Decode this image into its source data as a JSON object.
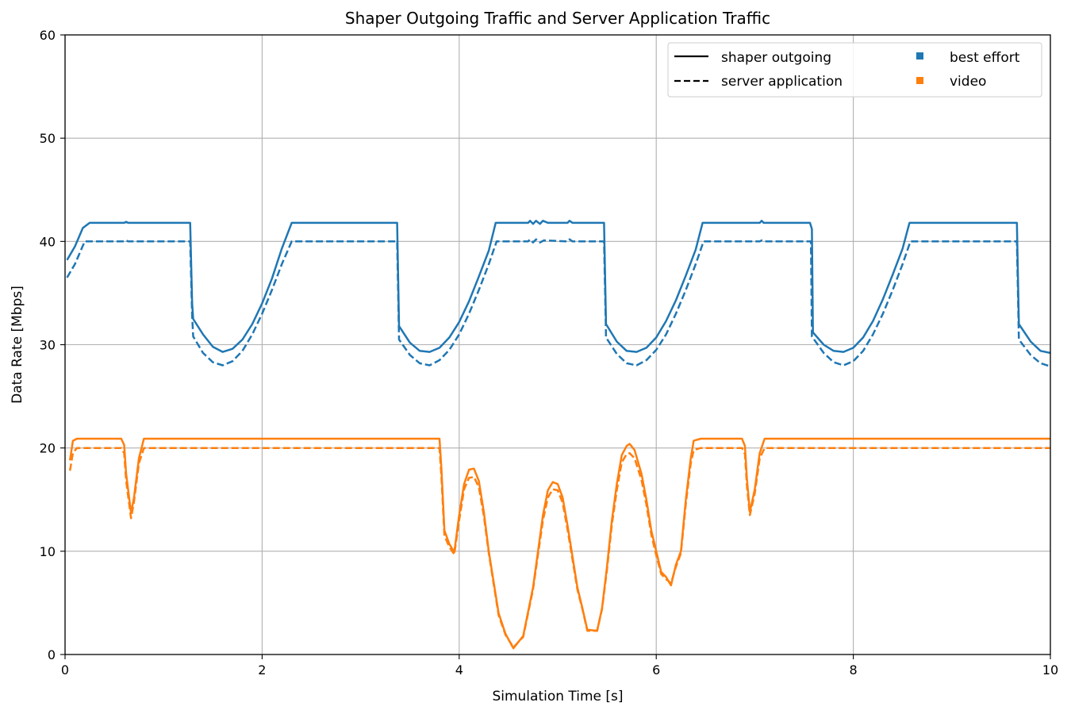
{
  "chart_data": {
    "type": "line",
    "title": "Shaper Outgoing Traffic and Server Application Traffic",
    "xlabel": "Simulation Time [s]",
    "ylabel": "Data Rate [Mbps]",
    "xlim": [
      0,
      10
    ],
    "ylim": [
      0,
      60
    ],
    "xticks": [
      0,
      2,
      4,
      6,
      8,
      10
    ],
    "yticks": [
      0,
      10,
      20,
      30,
      40,
      50,
      60
    ],
    "grid": true,
    "legend_position": "top-right",
    "legend": {
      "linestyles": [
        {
          "label": "shaper outgoing",
          "style": "solid"
        },
        {
          "label": "server application",
          "style": "dashed"
        }
      ],
      "categories": [
        {
          "label": "best effort",
          "color": "#1f77b4"
        },
        {
          "label": "video",
          "color": "#ff7f0e"
        }
      ]
    },
    "series": [
      {
        "category": "best effort",
        "style": "solid",
        "color": "#1f77b4",
        "points": [
          [
            0.02,
            38.2
          ],
          [
            0.1,
            39.5
          ],
          [
            0.18,
            41.3
          ],
          [
            0.25,
            41.8
          ],
          [
            0.6,
            41.8
          ],
          [
            0.62,
            41.9
          ],
          [
            0.64,
            41.8
          ],
          [
            1.27,
            41.8
          ],
          [
            1.29,
            34.0
          ],
          [
            1.3,
            32.5
          ],
          [
            1.4,
            31.0
          ],
          [
            1.5,
            29.8
          ],
          [
            1.6,
            29.3
          ],
          [
            1.7,
            29.6
          ],
          [
            1.8,
            30.5
          ],
          [
            1.9,
            32.0
          ],
          [
            2.0,
            34.0
          ],
          [
            2.1,
            36.4
          ],
          [
            2.2,
            39.3
          ],
          [
            2.3,
            41.8
          ],
          [
            3.37,
            41.8
          ],
          [
            3.39,
            31.8
          ],
          [
            3.5,
            30.2
          ],
          [
            3.6,
            29.4
          ],
          [
            3.7,
            29.3
          ],
          [
            3.8,
            29.7
          ],
          [
            3.9,
            30.7
          ],
          [
            4.0,
            32.2
          ],
          [
            4.1,
            34.2
          ],
          [
            4.2,
            36.6
          ],
          [
            4.3,
            39.1
          ],
          [
            4.37,
            41.8
          ],
          [
            4.7,
            41.8
          ],
          [
            4.72,
            42.0
          ],
          [
            4.75,
            41.7
          ],
          [
            4.78,
            42.0
          ],
          [
            4.82,
            41.7
          ],
          [
            4.85,
            42.0
          ],
          [
            4.9,
            41.8
          ],
          [
            5.1,
            41.8
          ],
          [
            5.12,
            42.0
          ],
          [
            5.15,
            41.8
          ],
          [
            5.47,
            41.8
          ],
          [
            5.49,
            32.0
          ],
          [
            5.6,
            30.3
          ],
          [
            5.7,
            29.4
          ],
          [
            5.8,
            29.3
          ],
          [
            5.9,
            29.7
          ],
          [
            6.0,
            30.7
          ],
          [
            6.1,
            32.3
          ],
          [
            6.2,
            34.3
          ],
          [
            6.3,
            36.7
          ],
          [
            6.4,
            39.2
          ],
          [
            6.47,
            41.8
          ],
          [
            7.05,
            41.8
          ],
          [
            7.07,
            42.0
          ],
          [
            7.09,
            41.8
          ],
          [
            7.56,
            41.8
          ],
          [
            7.58,
            41.2
          ],
          [
            7.59,
            31.2
          ],
          [
            7.7,
            30.0
          ],
          [
            7.8,
            29.4
          ],
          [
            7.9,
            29.3
          ],
          [
            8.0,
            29.7
          ],
          [
            8.1,
            30.7
          ],
          [
            8.2,
            32.3
          ],
          [
            8.3,
            34.4
          ],
          [
            8.4,
            36.8
          ],
          [
            8.5,
            39.3
          ],
          [
            8.57,
            41.8
          ],
          [
            9.66,
            41.8
          ],
          [
            9.68,
            32.0
          ],
          [
            9.8,
            30.3
          ],
          [
            9.9,
            29.4
          ],
          [
            10.0,
            29.2
          ]
        ]
      },
      {
        "category": "best effort",
        "style": "dashed",
        "color": "#1f77b4",
        "points": [
          [
            0.02,
            36.5
          ],
          [
            0.1,
            37.8
          ],
          [
            0.2,
            40.0
          ],
          [
            0.6,
            40.0
          ],
          [
            0.62,
            40.1
          ],
          [
            0.64,
            40.0
          ],
          [
            1.27,
            40.0
          ],
          [
            1.29,
            32.8
          ],
          [
            1.3,
            30.8
          ],
          [
            1.4,
            29.2
          ],
          [
            1.5,
            28.3
          ],
          [
            1.6,
            28.0
          ],
          [
            1.7,
            28.4
          ],
          [
            1.8,
            29.4
          ],
          [
            1.9,
            31.0
          ],
          [
            2.0,
            33.0
          ],
          [
            2.1,
            35.3
          ],
          [
            2.2,
            37.8
          ],
          [
            2.3,
            40.0
          ],
          [
            3.37,
            40.0
          ],
          [
            3.39,
            30.5
          ],
          [
            3.5,
            29.0
          ],
          [
            3.6,
            28.2
          ],
          [
            3.7,
            28.0
          ],
          [
            3.8,
            28.5
          ],
          [
            3.9,
            29.5
          ],
          [
            4.0,
            31.0
          ],
          [
            4.1,
            33.0
          ],
          [
            4.2,
            35.3
          ],
          [
            4.3,
            37.8
          ],
          [
            4.38,
            40.0
          ],
          [
            4.7,
            40.0
          ],
          [
            4.72,
            40.2
          ],
          [
            4.75,
            39.9
          ],
          [
            4.78,
            40.2
          ],
          [
            4.82,
            39.9
          ],
          [
            4.86,
            40.1
          ],
          [
            5.1,
            40.0
          ],
          [
            5.12,
            40.2
          ],
          [
            5.15,
            40.0
          ],
          [
            5.47,
            40.0
          ],
          [
            5.49,
            30.7
          ],
          [
            5.6,
            29.1
          ],
          [
            5.7,
            28.2
          ],
          [
            5.8,
            28.0
          ],
          [
            5.9,
            28.5
          ],
          [
            6.0,
            29.5
          ],
          [
            6.1,
            31.0
          ],
          [
            6.2,
            33.0
          ],
          [
            6.3,
            35.3
          ],
          [
            6.4,
            37.8
          ],
          [
            6.48,
            40.0
          ],
          [
            7.05,
            40.0
          ],
          [
            7.07,
            40.1
          ],
          [
            7.09,
            40.0
          ],
          [
            7.57,
            40.0
          ],
          [
            7.58,
            30.8
          ],
          [
            7.7,
            29.2
          ],
          [
            7.8,
            28.3
          ],
          [
            7.9,
            28.0
          ],
          [
            8.0,
            28.4
          ],
          [
            8.1,
            29.4
          ],
          [
            8.2,
            31.0
          ],
          [
            8.3,
            33.0
          ],
          [
            8.4,
            35.3
          ],
          [
            8.5,
            37.8
          ],
          [
            8.58,
            40.0
          ],
          [
            9.66,
            40.0
          ],
          [
            9.68,
            30.5
          ],
          [
            9.8,
            29.0
          ],
          [
            9.9,
            28.2
          ],
          [
            10.0,
            27.9
          ]
        ]
      },
      {
        "category": "video",
        "style": "solid",
        "color": "#ff7f0e",
        "points": [
          [
            0.05,
            18.8
          ],
          [
            0.08,
            20.7
          ],
          [
            0.12,
            20.9
          ],
          [
            0.57,
            20.9
          ],
          [
            0.6,
            20.3
          ],
          [
            0.62,
            17.5
          ],
          [
            0.67,
            13.7
          ],
          [
            0.7,
            15.2
          ],
          [
            0.75,
            19.0
          ],
          [
            0.8,
            20.9
          ],
          [
            3.8,
            20.9
          ],
          [
            3.82,
            18.0
          ],
          [
            3.85,
            12.0
          ],
          [
            3.9,
            10.7
          ],
          [
            3.95,
            9.9
          ],
          [
            4.0,
            13.5
          ],
          [
            4.05,
            16.5
          ],
          [
            4.1,
            17.9
          ],
          [
            4.15,
            18.0
          ],
          [
            4.2,
            16.8
          ],
          [
            4.25,
            13.8
          ],
          [
            4.3,
            10.0
          ],
          [
            4.35,
            7.0
          ],
          [
            4.4,
            4.0
          ],
          [
            4.47,
            2.0
          ],
          [
            4.55,
            0.6
          ],
          [
            4.65,
            1.8
          ],
          [
            4.75,
            6.5
          ],
          [
            4.8,
            10.0
          ],
          [
            4.85,
            13.5
          ],
          [
            4.9,
            15.9
          ],
          [
            4.95,
            16.7
          ],
          [
            5.0,
            16.5
          ],
          [
            5.05,
            15.2
          ],
          [
            5.1,
            12.5
          ],
          [
            5.15,
            9.5
          ],
          [
            5.2,
            6.5
          ],
          [
            5.25,
            4.5
          ],
          [
            5.3,
            2.4
          ],
          [
            5.4,
            2.3
          ],
          [
            5.45,
            4.5
          ],
          [
            5.5,
            8.5
          ],
          [
            5.55,
            13.0
          ],
          [
            5.6,
            16.5
          ],
          [
            5.65,
            19.3
          ],
          [
            5.7,
            20.2
          ],
          [
            5.73,
            20.4
          ],
          [
            5.78,
            19.8
          ],
          [
            5.85,
            17.5
          ],
          [
            5.9,
            15.0
          ],
          [
            5.95,
            12.0
          ],
          [
            6.0,
            10.0
          ],
          [
            6.05,
            8.0
          ],
          [
            6.1,
            7.5
          ],
          [
            6.15,
            6.7
          ],
          [
            6.2,
            8.7
          ],
          [
            6.25,
            10.0
          ],
          [
            6.3,
            15.0
          ],
          [
            6.35,
            19.0
          ],
          [
            6.38,
            20.7
          ],
          [
            6.45,
            20.9
          ],
          [
            6.87,
            20.9
          ],
          [
            6.9,
            20.2
          ],
          [
            6.92,
            17.0
          ],
          [
            6.95,
            13.8
          ],
          [
            7.0,
            16.0
          ],
          [
            7.05,
            19.5
          ],
          [
            7.1,
            20.9
          ],
          [
            10.0,
            20.9
          ]
        ]
      },
      {
        "category": "video",
        "style": "dashed",
        "color": "#ff7f0e",
        "points": [
          [
            0.05,
            17.8
          ],
          [
            0.08,
            19.5
          ],
          [
            0.12,
            20.0
          ],
          [
            0.57,
            20.0
          ],
          [
            0.6,
            19.5
          ],
          [
            0.62,
            16.8
          ],
          [
            0.67,
            13.2
          ],
          [
            0.7,
            14.8
          ],
          [
            0.75,
            18.5
          ],
          [
            0.8,
            20.0
          ],
          [
            3.8,
            20.0
          ],
          [
            3.82,
            17.2
          ],
          [
            3.85,
            11.5
          ],
          [
            3.9,
            10.4
          ],
          [
            3.95,
            9.7
          ],
          [
            4.0,
            13.0
          ],
          [
            4.05,
            16.0
          ],
          [
            4.1,
            17.1
          ],
          [
            4.15,
            17.2
          ],
          [
            4.2,
            16.2
          ],
          [
            4.25,
            13.4
          ],
          [
            4.3,
            9.8
          ],
          [
            4.35,
            6.8
          ],
          [
            4.4,
            3.8
          ],
          [
            4.47,
            1.9
          ],
          [
            4.55,
            0.7
          ],
          [
            4.65,
            1.7
          ],
          [
            4.75,
            6.3
          ],
          [
            4.8,
            9.7
          ],
          [
            4.85,
            13.0
          ],
          [
            4.9,
            15.2
          ],
          [
            4.95,
            16.0
          ],
          [
            5.0,
            15.9
          ],
          [
            5.05,
            14.7
          ],
          [
            5.1,
            12.1
          ],
          [
            5.15,
            9.2
          ],
          [
            5.2,
            6.3
          ],
          [
            5.25,
            4.4
          ],
          [
            5.3,
            2.3
          ],
          [
            5.4,
            2.3
          ],
          [
            5.45,
            4.4
          ],
          [
            5.5,
            8.2
          ],
          [
            5.55,
            12.6
          ],
          [
            5.6,
            15.9
          ],
          [
            5.65,
            18.6
          ],
          [
            5.7,
            19.4
          ],
          [
            5.73,
            19.5
          ],
          [
            5.78,
            19.0
          ],
          [
            5.85,
            16.9
          ],
          [
            5.9,
            14.5
          ],
          [
            5.95,
            11.6
          ],
          [
            6.0,
            9.6
          ],
          [
            6.05,
            7.8
          ],
          [
            6.1,
            7.3
          ],
          [
            6.15,
            6.9
          ],
          [
            6.2,
            8.5
          ],
          [
            6.25,
            9.8
          ],
          [
            6.3,
            14.6
          ],
          [
            6.35,
            18.5
          ],
          [
            6.38,
            19.8
          ],
          [
            6.45,
            20.0
          ],
          [
            6.87,
            20.0
          ],
          [
            6.9,
            19.4
          ],
          [
            6.92,
            16.3
          ],
          [
            6.95,
            13.5
          ],
          [
            7.0,
            15.6
          ],
          [
            7.05,
            19.0
          ],
          [
            7.1,
            20.0
          ],
          [
            10.0,
            20.0
          ]
        ]
      }
    ]
  }
}
